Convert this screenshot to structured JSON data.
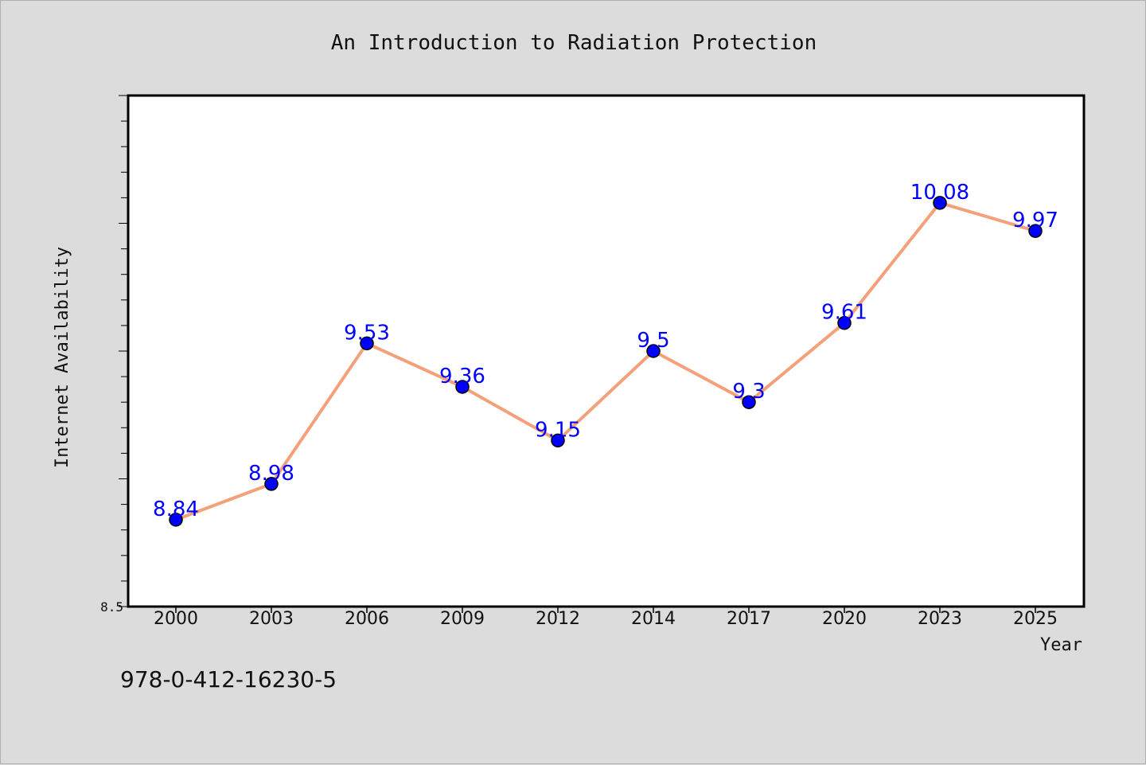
{
  "chart_data": {
    "type": "line",
    "title": "An Introduction to Radiation Protection",
    "xlabel": "Year",
    "ylabel": "Internet Availability",
    "categories": [
      "2000",
      "2003",
      "2006",
      "2009",
      "2012",
      "2014",
      "2017",
      "2020",
      "2023",
      "2025"
    ],
    "series": [
      {
        "values": [
          8.84,
          8.98,
          9.53,
          9.36,
          9.15,
          9.5,
          9.3,
          9.61,
          10.08,
          9.97
        ],
        "labels": [
          "8.84",
          "8.98",
          "9.53",
          "9.36",
          "9.15",
          "9.5",
          "9.3",
          "9.61",
          "10.08",
          "9.97"
        ]
      }
    ],
    "ylim": [
      8.5,
      10.5
    ],
    "yticks_labeled": [
      "8.5"
    ],
    "grid": false,
    "line_color": "#f4a07a",
    "marker_color": "#0000ff",
    "label_color": "#0000ff"
  },
  "footer": {
    "isbn": "978-0-412-16230-5"
  }
}
